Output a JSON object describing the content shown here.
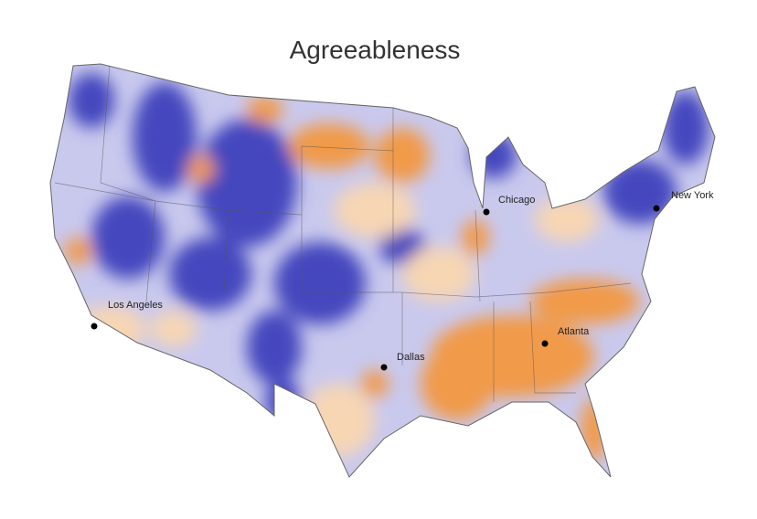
{
  "title": "Agreeableness",
  "cities": [
    {
      "label": "Chicago"
    },
    {
      "label": "New York"
    },
    {
      "label": "Los Angeles"
    },
    {
      "label": "Dallas"
    },
    {
      "label": "Atlanta"
    }
  ]
}
